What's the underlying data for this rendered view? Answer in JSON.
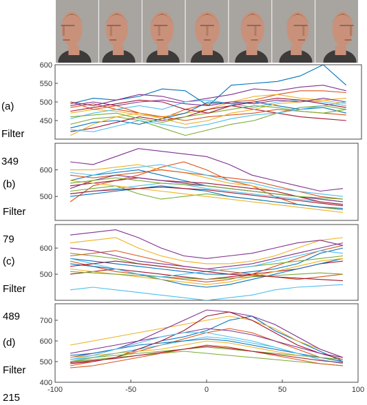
{
  "faces": {
    "count": 7,
    "poses": [
      "left-profile",
      "left-three-quarter",
      "left-slight",
      "frontal",
      "right-slight",
      "right-three-quarter",
      "right-profile"
    ],
    "background_color": "#a8a4a0",
    "skin_color": "#c9917a",
    "hair_color": "#6b4a35"
  },
  "panel_labels": [
    {
      "tag": "(a)",
      "word": "Filter",
      "num": "349"
    },
    {
      "tag": "(b)",
      "word": "Filter",
      "num": "79"
    },
    {
      "tag": "(c)",
      "word": "Filter",
      "num": "489"
    },
    {
      "tag": "(d)",
      "word": "Filter",
      "num": "215"
    }
  ],
  "colors": [
    "#0072bd",
    "#d95319",
    "#edb120",
    "#7e2f8e",
    "#77ac30",
    "#4dbeee",
    "#a2142f"
  ],
  "chart_data": [
    {
      "type": "line",
      "title": "",
      "xlabel": "",
      "ylabel": "",
      "x": [
        -90,
        -75,
        -60,
        -45,
        -30,
        -15,
        0,
        15,
        30,
        45,
        60,
        75,
        90
      ],
      "xlim": [
        -100,
        100
      ],
      "ylim": [
        400,
        600
      ],
      "yticks": [
        450,
        500,
        550,
        600
      ],
      "xticks_shown": false,
      "series": [
        {
          "values": [
            495,
            510,
            505,
            515,
            535,
            530,
            490,
            545,
            550,
            555,
            570,
            600,
            545
          ]
        },
        {
          "values": [
            485,
            495,
            480,
            470,
            455,
            480,
            495,
            500,
            505,
            520,
            530,
            530,
            525
          ]
        },
        {
          "values": [
            470,
            480,
            475,
            465,
            460,
            470,
            480,
            500,
            515,
            520,
            510,
            505,
            495
          ]
        },
        {
          "values": [
            500,
            490,
            505,
            520,
            515,
            500,
            510,
            520,
            535,
            530,
            540,
            545,
            530
          ]
        },
        {
          "values": [
            440,
            455,
            460,
            450,
            430,
            410,
            425,
            440,
            450,
            470,
            485,
            490,
            480
          ]
        },
        {
          "values": [
            455,
            470,
            480,
            490,
            480,
            500,
            505,
            495,
            485,
            500,
            505,
            500,
            490
          ]
        },
        {
          "values": [
            420,
            430,
            445,
            460,
            450,
            460,
            480,
            490,
            480,
            470,
            460,
            455,
            450
          ]
        },
        {
          "values": [
            430,
            445,
            450,
            440,
            455,
            470,
            500,
            495,
            500,
            490,
            480,
            485,
            470
          ]
        },
        {
          "values": [
            500,
            480,
            490,
            470,
            460,
            450,
            460,
            465,
            470,
            480,
            475,
            470,
            465
          ]
        },
        {
          "values": [
            410,
            440,
            460,
            470,
            455,
            440,
            450,
            470,
            480,
            495,
            500,
            505,
            510
          ]
        },
        {
          "values": [
            490,
            500,
            490,
            500,
            505,
            495,
            490,
            500,
            495,
            505,
            500,
            510,
            500
          ]
        },
        {
          "values": [
            460,
            465,
            470,
            455,
            445,
            460,
            470,
            480,
            490,
            485,
            475,
            470,
            480
          ]
        },
        {
          "values": [
            425,
            420,
            435,
            450,
            440,
            430,
            440,
            455,
            465,
            470,
            480,
            490,
            500
          ]
        },
        {
          "values": [
            475,
            485,
            495,
            505,
            500,
            480,
            470,
            490,
            500,
            510,
            505,
            495,
            485
          ]
        }
      ]
    },
    {
      "type": "line",
      "title": "",
      "xlabel": "",
      "ylabel": "",
      "x": [
        -90,
        -75,
        -60,
        -45,
        -30,
        -15,
        0,
        15,
        30,
        45,
        60,
        75,
        90
      ],
      "xlim": [
        -100,
        100
      ],
      "ylim": [
        410,
        700
      ],
      "yticks": [
        500,
        600
      ],
      "xticks_shown": false,
      "series": [
        {
          "values": [
            560,
            580,
            590,
            600,
            580,
            560,
            540,
            530,
            520,
            510,
            500,
            490,
            480
          ]
        },
        {
          "values": [
            480,
            540,
            560,
            580,
            610,
            630,
            600,
            560,
            540,
            500,
            470,
            460,
            450
          ]
        },
        {
          "values": [
            600,
            600,
            610,
            620,
            600,
            590,
            570,
            550,
            540,
            520,
            500,
            480,
            470
          ]
        },
        {
          "values": [
            630,
            620,
            650,
            680,
            670,
            660,
            650,
            620,
            580,
            560,
            540,
            520,
            530
          ]
        },
        {
          "values": [
            520,
            530,
            540,
            510,
            490,
            500,
            510,
            500,
            490,
            480,
            470,
            460,
            450
          ]
        },
        {
          "values": [
            510,
            520,
            530,
            540,
            550,
            545,
            530,
            520,
            510,
            500,
            490,
            480,
            470
          ]
        },
        {
          "values": [
            540,
            550,
            560,
            570,
            560,
            555,
            550,
            540,
            530,
            520,
            500,
            480,
            470
          ]
        },
        {
          "values": [
            500,
            510,
            520,
            530,
            540,
            530,
            520,
            500,
            490,
            480,
            470,
            460,
            455
          ]
        },
        {
          "values": [
            580,
            570,
            580,
            590,
            600,
            590,
            580,
            570,
            560,
            540,
            520,
            500,
            490
          ]
        },
        {
          "values": [
            560,
            550,
            540,
            530,
            520,
            510,
            500,
            490,
            480,
            470,
            460,
            450,
            440
          ]
        },
        {
          "values": [
            530,
            560,
            580,
            570,
            560,
            550,
            540,
            530,
            520,
            510,
            500,
            490,
            480
          ]
        },
        {
          "values": [
            550,
            560,
            570,
            560,
            550,
            545,
            540,
            530,
            520,
            510,
            500,
            495,
            490
          ]
        },
        {
          "values": [
            590,
            580,
            600,
            610,
            620,
            600,
            580,
            560,
            550,
            530,
            520,
            510,
            500
          ]
        },
        {
          "values": [
            510,
            520,
            525,
            530,
            535,
            530,
            525,
            515,
            505,
            495,
            485,
            475,
            465
          ]
        }
      ]
    },
    {
      "type": "line",
      "title": "",
      "xlabel": "",
      "ylabel": "",
      "x": [
        -90,
        -75,
        -60,
        -45,
        -30,
        -15,
        0,
        15,
        30,
        45,
        60,
        75,
        90
      ],
      "xlim": [
        -100,
        100
      ],
      "ylim": [
        400,
        690
      ],
      "yticks": [
        500,
        600
      ],
      "xticks_shown": false,
      "series": [
        {
          "values": [
            560,
            550,
            540,
            530,
            520,
            510,
            500,
            500,
            510,
            520,
            540,
            580,
            600
          ]
        },
        {
          "values": [
            550,
            530,
            510,
            500,
            490,
            480,
            470,
            480,
            500,
            530,
            560,
            590,
            610
          ]
        },
        {
          "values": [
            620,
            630,
            640,
            600,
            570,
            550,
            540,
            540,
            550,
            570,
            600,
            630,
            640
          ]
        },
        {
          "values": [
            650,
            660,
            670,
            640,
            600,
            570,
            560,
            570,
            580,
            600,
            620,
            630,
            610
          ]
        },
        {
          "values": [
            580,
            570,
            560,
            540,
            530,
            520,
            510,
            520,
            530,
            540,
            550,
            560,
            570
          ]
        },
        {
          "values": [
            440,
            450,
            440,
            430,
            420,
            410,
            400,
            410,
            420,
            440,
            450,
            455,
            460
          ]
        },
        {
          "values": [
            500,
            510,
            520,
            510,
            500,
            490,
            480,
            490,
            500,
            510,
            520,
            540,
            550
          ]
        },
        {
          "values": [
            540,
            530,
            520,
            500,
            480,
            460,
            450,
            460,
            480,
            500,
            520,
            540,
            560
          ]
        },
        {
          "values": [
            570,
            580,
            590,
            570,
            550,
            530,
            520,
            510,
            500,
            490,
            480,
            490,
            500
          ]
        },
        {
          "values": [
            520,
            510,
            500,
            490,
            480,
            470,
            460,
            470,
            490,
            510,
            530,
            550,
            560
          ]
        },
        {
          "values": [
            600,
            590,
            570,
            550,
            540,
            530,
            520,
            530,
            540,
            560,
            580,
            600,
            620
          ]
        },
        {
          "values": [
            510,
            505,
            500,
            495,
            490,
            485,
            480,
            485,
            490,
            495,
            500,
            505,
            500
          ]
        },
        {
          "values": [
            560,
            540,
            520,
            500,
            490,
            500,
            510,
            520,
            530,
            550,
            570,
            590,
            580
          ]
        },
        {
          "values": [
            530,
            540,
            550,
            540,
            530,
            520,
            510,
            500,
            495,
            490,
            485,
            480,
            475
          ]
        }
      ]
    },
    {
      "type": "line",
      "title": "",
      "xlabel": "",
      "ylabel": "",
      "x": [
        -90,
        -75,
        -60,
        -45,
        -30,
        -15,
        0,
        15,
        30,
        45,
        60,
        75,
        90
      ],
      "xlim": [
        -100,
        100
      ],
      "ylim": [
        400,
        780
      ],
      "yticks": [
        400,
        500,
        600,
        700
      ],
      "xticks": [
        -100,
        -50,
        0,
        50,
        100
      ],
      "xticks_shown": true,
      "series": [
        {
          "values": [
            500,
            520,
            540,
            560,
            600,
            620,
            650,
            700,
            720,
            650,
            600,
            550,
            500
          ]
        },
        {
          "values": [
            480,
            500,
            520,
            550,
            580,
            610,
            640,
            660,
            640,
            600,
            560,
            520,
            500
          ]
        },
        {
          "values": [
            580,
            600,
            620,
            640,
            660,
            680,
            700,
            720,
            700,
            660,
            600,
            560,
            520
          ]
        },
        {
          "values": [
            520,
            540,
            560,
            600,
            650,
            700,
            750,
            740,
            720,
            680,
            620,
            560,
            520
          ]
        },
        {
          "values": [
            500,
            510,
            520,
            530,
            540,
            550,
            540,
            530,
            520,
            510,
            500,
            490,
            480
          ]
        },
        {
          "values": [
            510,
            520,
            540,
            560,
            580,
            600,
            620,
            610,
            590,
            570,
            540,
            510,
            490
          ]
        },
        {
          "values": [
            490,
            500,
            520,
            560,
            600,
            650,
            720,
            740,
            700,
            640,
            580,
            540,
            510
          ]
        },
        {
          "values": [
            530,
            540,
            560,
            580,
            590,
            600,
            610,
            600,
            580,
            560,
            540,
            520,
            500
          ]
        },
        {
          "values": [
            470,
            480,
            500,
            520,
            540,
            560,
            580,
            570,
            550,
            530,
            510,
            490,
            480
          ]
        },
        {
          "values": [
            520,
            530,
            540,
            550,
            560,
            580,
            600,
            590,
            570,
            550,
            530,
            520,
            510
          ]
        },
        {
          "values": [
            540,
            560,
            580,
            600,
            620,
            640,
            660,
            650,
            630,
            600,
            570,
            540,
            520
          ]
        },
        {
          "values": [
            500,
            520,
            530,
            540,
            550,
            560,
            570,
            560,
            550,
            540,
            530,
            520,
            510
          ]
        },
        {
          "values": [
            510,
            530,
            560,
            590,
            620,
            640,
            640,
            620,
            600,
            570,
            540,
            510,
            490
          ]
        },
        {
          "values": [
            495,
            505,
            515,
            530,
            545,
            560,
            575,
            565,
            550,
            535,
            520,
            505,
            495
          ]
        }
      ]
    }
  ]
}
